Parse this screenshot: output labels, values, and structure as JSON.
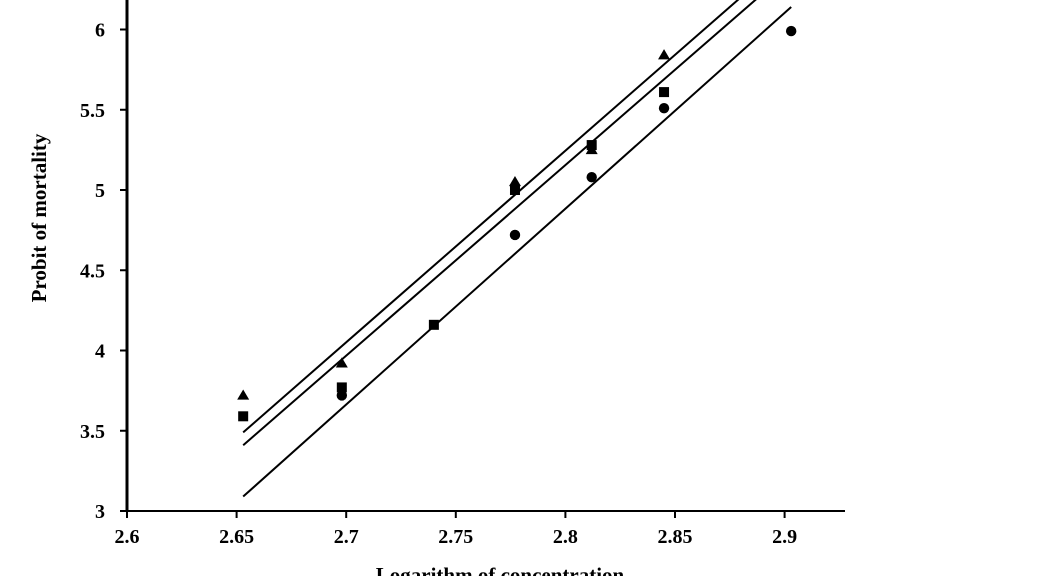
{
  "chart_data": {
    "type": "scatter",
    "title": "",
    "xlabel": "Logarithm of concentration",
    "ylabel": "Probit of mortality",
    "xlim": [
      2.6,
      2.93
    ],
    "ylim": [
      3,
      6.2
    ],
    "xticks": [
      "2.6",
      "2.65",
      "2.7",
      "2.75",
      "2.8",
      "2.85",
      "2.9"
    ],
    "yticks": [
      "3",
      "3.5",
      "4",
      "4.5",
      "5",
      "5.5",
      "6"
    ],
    "grid": false,
    "legend": "none",
    "series": [
      {
        "marker": "triangle",
        "color": "#000000",
        "points": [
          [
            2.653,
            3.72
          ],
          [
            2.698,
            3.92
          ],
          [
            2.777,
            5.05
          ],
          [
            2.812,
            5.25
          ],
          [
            2.845,
            5.84
          ]
        ],
        "fit_line": [
          [
            2.653,
            3.49
          ],
          [
            2.88,
            6.2
          ]
        ]
      },
      {
        "marker": "square",
        "color": "#000000",
        "points": [
          [
            2.653,
            3.59
          ],
          [
            2.698,
            3.77
          ],
          [
            2.74,
            4.16
          ],
          [
            2.777,
            5.0
          ],
          [
            2.812,
            5.28
          ],
          [
            2.845,
            5.61
          ]
        ],
        "fit_line": [
          [
            2.653,
            3.41
          ],
          [
            2.888,
            6.2
          ]
        ]
      },
      {
        "marker": "circle",
        "color": "#000000",
        "points": [
          [
            2.698,
            3.72
          ],
          [
            2.777,
            4.72
          ],
          [
            2.812,
            5.08
          ],
          [
            2.845,
            5.51
          ],
          [
            2.903,
            5.99
          ]
        ],
        "fit_line": [
          [
            2.653,
            3.09
          ],
          [
            2.903,
            6.14
          ]
        ]
      }
    ]
  }
}
